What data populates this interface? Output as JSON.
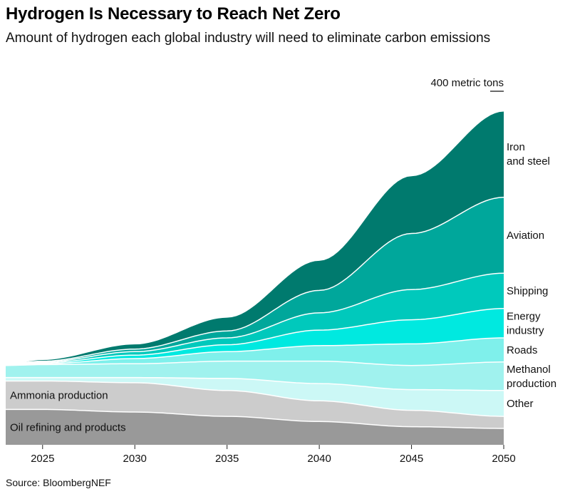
{
  "title": "Hydrogen Is Necessary to Reach Net Zero",
  "subtitle": "Amount of hydrogen each global industry will need to eliminate carbon emissions",
  "source": "Source: BloombergNEF",
  "chart_data": {
    "type": "area",
    "stacked": true,
    "scale_annotation": "400 metric tons",
    "x_ticks": [
      "2025",
      "2030",
      "2035",
      "2040",
      "2045",
      "2050"
    ],
    "x": [
      2023,
      2025,
      2030,
      2035,
      2040,
      2045,
      2050
    ],
    "ylim": [
      0,
      400
    ],
    "series": [
      {
        "name": "Oil refining and products",
        "color": "#999999",
        "label_inside": true,
        "values": [
          41,
          41,
          38,
          33,
          27,
          21,
          19
        ]
      },
      {
        "name": "Ammonia production",
        "color": "#cccccc",
        "label_inside": true,
        "values": [
          33,
          33,
          34,
          30,
          24,
          19,
          14
        ]
      },
      {
        "name": "Other",
        "color": "#ccf8f6",
        "label_inside": false,
        "values": [
          4,
          4,
          6,
          14,
          20,
          24,
          30
        ]
      },
      {
        "name": "Methanol production",
        "color": "#a0f2ee",
        "label_inside": false,
        "values": [
          14,
          15,
          16,
          20,
          26,
          28,
          33
        ]
      },
      {
        "name": "Roads",
        "color": "#7ff0eb",
        "label_inside": false,
        "values": [
          1,
          1,
          6,
          11,
          18,
          25,
          28
        ]
      },
      {
        "name": "Energy industry",
        "color": "#00e9e0",
        "label_inside": false,
        "values": [
          1,
          1,
          4,
          8,
          18,
          28,
          34
        ]
      },
      {
        "name": "Shipping",
        "color": "#00c9bc",
        "label_inside": false,
        "values": [
          0,
          1,
          4,
          8,
          20,
          35,
          41
        ]
      },
      {
        "name": "Aviation",
        "color": "#00a79b",
        "label_inside": false,
        "values": [
          0,
          1,
          3,
          8,
          26,
          65,
          88
        ]
      },
      {
        "name": "Iron and steel",
        "color": "#007a6e",
        "label_inside": false,
        "values": [
          0,
          2,
          6,
          16,
          35,
          67,
          100
        ]
      }
    ]
  }
}
